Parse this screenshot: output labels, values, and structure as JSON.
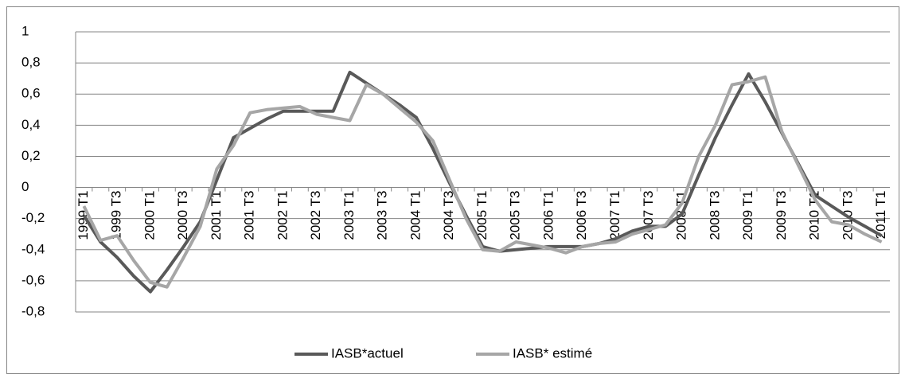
{
  "chart_data": {
    "type": "line",
    "categories": [
      "1999 T1",
      null,
      "1999 T3",
      null,
      "2000 T1",
      null,
      "2000 T3",
      null,
      "2001 T1",
      null,
      "2001 T3",
      null,
      "2002 T1",
      null,
      "2002 T3",
      null,
      "2003 T1",
      null,
      "2003 T3",
      null,
      "2004 T1",
      null,
      "2004 T3",
      null,
      "2005 T1",
      null,
      "2005 T3",
      null,
      "2006 T1",
      null,
      "2006 T3",
      null,
      "2007 T1",
      null,
      "2007 T3",
      null,
      "2008 T1",
      null,
      "2008 T3",
      null,
      "2009 T1",
      null,
      "2009 T3",
      null,
      "2010 T1",
      null,
      "2010 T3",
      null,
      "2011 T1"
    ],
    "series": [
      {
        "name": "IASB*actuel",
        "color": "#595959",
        "values": [
          -0.18,
          -0.35,
          -0.45,
          -0.57,
          -0.67,
          -0.53,
          -0.38,
          -0.22,
          0.05,
          0.32,
          0.38,
          0.44,
          0.49,
          0.49,
          0.49,
          0.49,
          0.74,
          0.67,
          0.6,
          0.53,
          0.45,
          0.25,
          0.03,
          -0.18,
          -0.38,
          -0.41,
          -0.4,
          -0.39,
          -0.38,
          -0.38,
          -0.38,
          -0.36,
          -0.33,
          -0.28,
          -0.25,
          -0.25,
          -0.17,
          0.08,
          0.32,
          0.53,
          0.73,
          0.55,
          0.35,
          0.15,
          -0.05,
          -0.12,
          -0.19,
          -0.25,
          -0.31
        ]
      },
      {
        "name": "IASB* estimé",
        "color": "#a6a6a6",
        "values": [
          -0.12,
          -0.34,
          -0.31,
          -0.47,
          -0.61,
          -0.64,
          -0.45,
          -0.25,
          0.12,
          0.27,
          0.48,
          0.5,
          0.51,
          0.52,
          0.47,
          0.45,
          0.43,
          0.66,
          0.6,
          0.51,
          0.42,
          0.3,
          0.05,
          -0.2,
          -0.4,
          -0.41,
          -0.35,
          -0.37,
          -0.39,
          -0.42,
          -0.38,
          -0.36,
          -0.35,
          -0.3,
          -0.27,
          -0.24,
          -0.1,
          0.2,
          0.4,
          0.66,
          0.68,
          0.71,
          0.36,
          0.14,
          -0.08,
          -0.22,
          -0.24,
          -0.3,
          -0.35
        ]
      }
    ],
    "ylim": [
      -0.8,
      1
    ],
    "yticks": [
      {
        "value": -0.8,
        "label": "-0,8"
      },
      {
        "value": -0.6,
        "label": "-0,6"
      },
      {
        "value": -0.4,
        "label": "-0,4"
      },
      {
        "value": -0.2,
        "label": "-0,2"
      },
      0,
      {
        "value": 0.2,
        "label": "0,2"
      },
      {
        "value": 0.4,
        "label": "0,4"
      },
      {
        "value": 0.6,
        "label": "0,6"
      },
      {
        "value": 0.8,
        "label": "0,8"
      },
      1
    ],
    "grid": true,
    "legend": "bottom"
  }
}
